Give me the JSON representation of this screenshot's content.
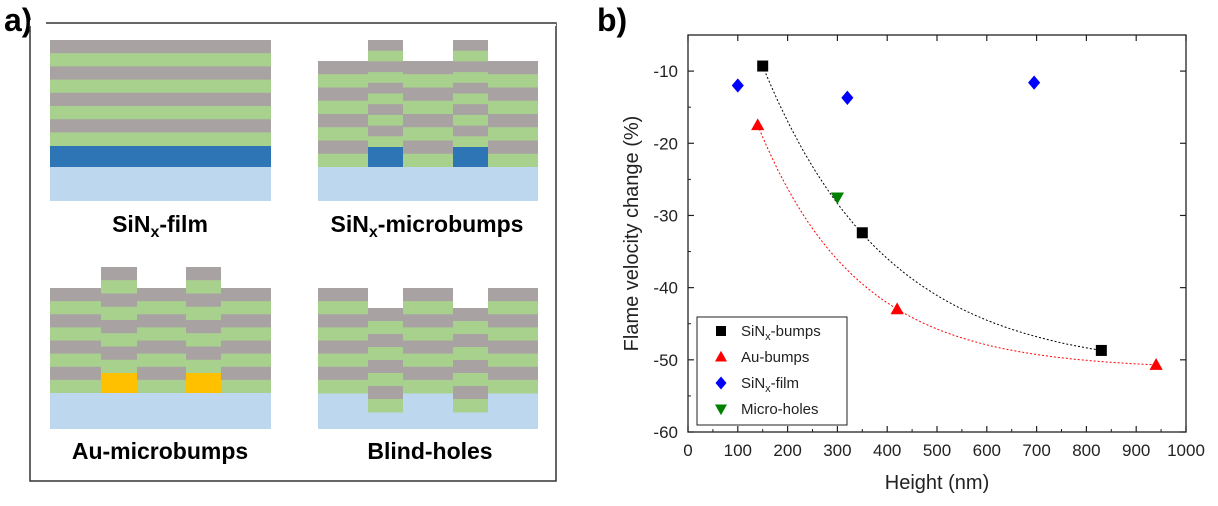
{
  "panel_a": {
    "label": "a)",
    "captions": {
      "film_main": "SiN",
      "film_sub": "x",
      "film_tail": "-film",
      "bumps_main": "SiN",
      "bumps_sub": "x",
      "bumps_tail": "-microbumps",
      "au": "Au-microbumps",
      "holes": "Blind-holes"
    }
  },
  "panel_b": {
    "label": "b)"
  },
  "colors": {
    "gray": "#a8a2a3",
    "green": "#a9d18e",
    "dark_blue": "#2e75b6",
    "light_blue": "#bdd7ee",
    "gold": "#ffc000",
    "sinx_bumps": "#000000",
    "au_bumps": "#ff0000",
    "sinx_film": "#0000ff",
    "micro_holes": "#008000"
  },
  "chart_data": {
    "type": "scatter",
    "xlabel": "Height (nm)",
    "ylabel": "Flame velocity change (%)",
    "xlim": [
      0,
      1000
    ],
    "ylim": [
      -60,
      -5
    ],
    "x_ticks": [
      "0",
      "100",
      "200",
      "300",
      "400",
      "500",
      "600",
      "700",
      "800",
      "900",
      "1000"
    ],
    "y_ticks": [
      "-10",
      "-20",
      "-30",
      "-40",
      "-50",
      "-60"
    ],
    "grid": false,
    "legend_position": "bottom-left",
    "series": [
      {
        "name_main": "SiN",
        "name_sub": "x",
        "name_tail": "-bumps",
        "marker": "square",
        "color": "#000000",
        "x": [
          150,
          350,
          830
        ],
        "y": [
          -9.3,
          -32.4,
          -48.7
        ],
        "fit": true
      },
      {
        "name_main": "Au-bumps",
        "name_sub": "",
        "name_tail": "",
        "marker": "triangle-up",
        "color": "#ff0000",
        "x": [
          140,
          420,
          940
        ],
        "y": [
          -17.5,
          -43.0,
          -50.7
        ],
        "fit": true
      },
      {
        "name_main": "SiN",
        "name_sub": "x",
        "name_tail": "-film",
        "marker": "diamond",
        "color": "#0000ff",
        "x": [
          100,
          320,
          695
        ],
        "y": [
          -12.0,
          -13.7,
          -11.6
        ],
        "fit": false
      },
      {
        "name_main": "Micro-holes",
        "name_sub": "",
        "name_tail": "",
        "marker": "triangle-down",
        "color": "#008000",
        "x": [
          300
        ],
        "y": [
          -27.5
        ],
        "fit": false
      }
    ]
  }
}
